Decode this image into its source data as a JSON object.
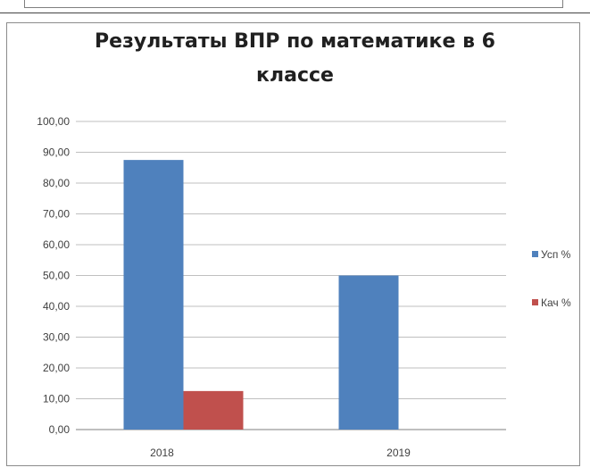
{
  "chart_data": {
    "type": "bar",
    "title_lines": [
      "Результаты ВПР по математике в 6",
      "классе"
    ],
    "categories": [
      "2018",
      "2019"
    ],
    "series": [
      {
        "name": "Усп %",
        "values": [
          87.5,
          50.0
        ],
        "color": "#4f81bd"
      },
      {
        "name": "Кач %",
        "values": [
          12.5,
          0.0
        ],
        "color": "#c0504d"
      }
    ],
    "ylim": [
      0,
      100
    ],
    "ytick_labels": [
      "0,00",
      "10,00",
      "20,00",
      "30,00",
      "40,00",
      "50,00",
      "60,00",
      "70,00",
      "80,00",
      "90,00",
      "100,00"
    ],
    "grid": true,
    "legend_position": "right"
  }
}
